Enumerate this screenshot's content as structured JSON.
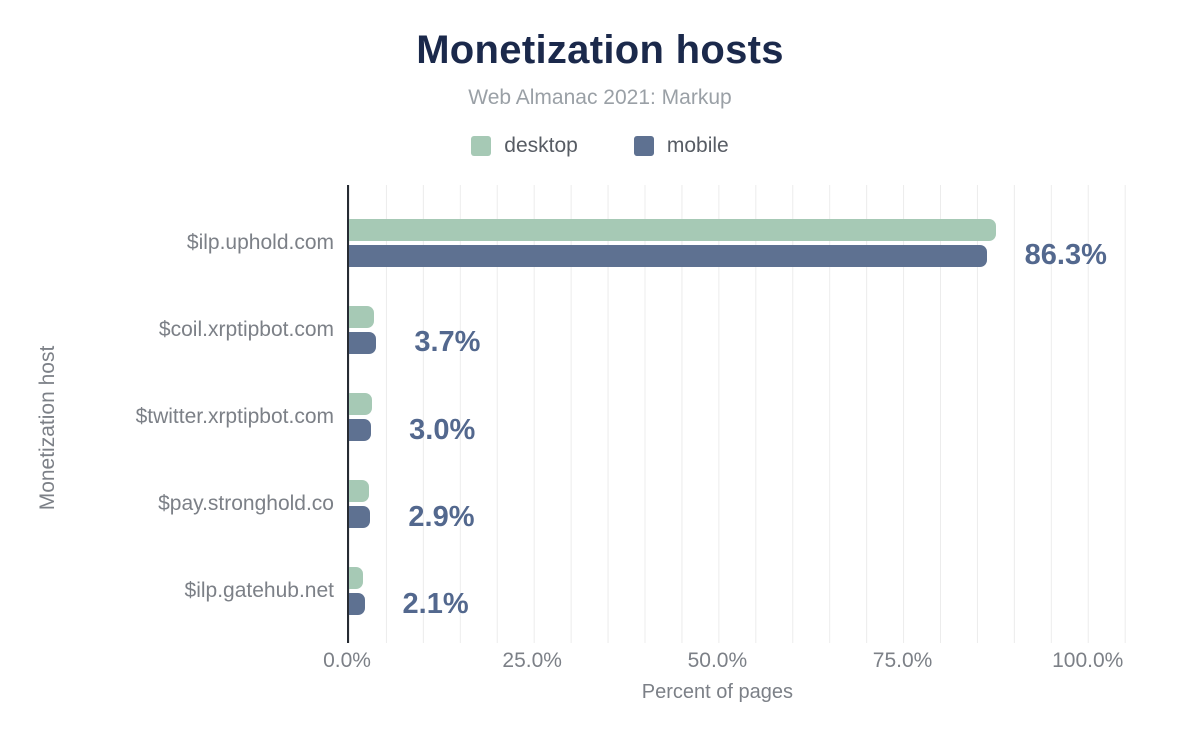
{
  "header": {
    "title": "Monetization hosts",
    "subtitle": "Web Almanac 2021: Markup"
  },
  "chart_data": {
    "type": "bar",
    "orientation": "horizontal",
    "title": "Monetization hosts",
    "subtitle": "Web Almanac 2021: Markup",
    "categories": [
      "$ilp.uphold.com",
      "$coil.xrptipbot.com",
      "$twitter.xrptipbot.com",
      "$pay.stronghold.co",
      "$ilp.gatehub.net"
    ],
    "series": [
      {
        "name": "desktop",
        "color": "#a6c9b5",
        "values": [
          87.5,
          3.4,
          3.1,
          2.7,
          1.9
        ]
      },
      {
        "name": "mobile",
        "color": "#5e7191",
        "values": [
          86.3,
          3.7,
          3.0,
          2.9,
          2.1
        ]
      }
    ],
    "annotations": [
      "86.3%",
      "3.7%",
      "3.0%",
      "2.9%",
      "2.1%"
    ],
    "annotated_series": "mobile",
    "xlabel": "Percent of pages",
    "ylabel": "Monetization host",
    "xlim": [
      0,
      108
    ],
    "x_ticks": [
      {
        "value": 0,
        "label": "0.0%"
      },
      {
        "value": 25,
        "label": "25.0%"
      },
      {
        "value": 50,
        "label": "50.0%"
      },
      {
        "value": 75,
        "label": "75.0%"
      },
      {
        "value": 100,
        "label": "100.0%"
      }
    ],
    "grid": {
      "show": true,
      "interval": 5
    },
    "legend_position": "top",
    "colors": {
      "desktop": "#a6c9b5",
      "mobile": "#5e7191",
      "annotation": "#53688e",
      "title": "#1b294b",
      "axis_line": "#262b33",
      "gridline": "#ececec",
      "axis_text": "#7c8087",
      "subtitle_text": "#9aa0a6",
      "legend_text": "#575c64"
    }
  }
}
